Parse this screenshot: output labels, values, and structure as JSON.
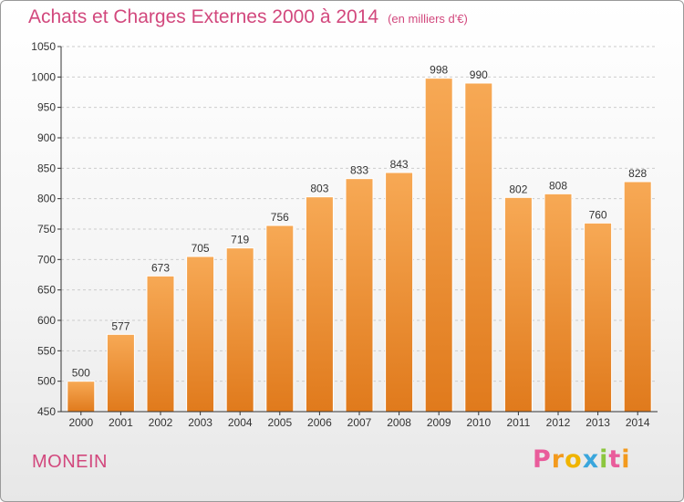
{
  "header": {
    "title": "Achats et Charges Externes 2000 à 2014",
    "unit": "(en milliers d'€)"
  },
  "footer": {
    "commune": "MONEIN",
    "logo_letters": [
      "P",
      "r",
      "o",
      "x",
      "i",
      "t",
      "i"
    ],
    "logo_colors": [
      "#e95c9b",
      "#f39a1e",
      "#f0b400",
      "#3aa6dc",
      "#8cc63e",
      "#e95c9b",
      "#f39a1e"
    ]
  },
  "colors": {
    "bar_top": "#f7a955",
    "bar_bottom": "#e07a1c",
    "accent": "#d2487d",
    "grid": "#cccccc"
  },
  "chart_data": {
    "type": "bar",
    "title": "Achats et Charges Externes 2000 à 2014",
    "subtitle": "(en milliers d'€)",
    "xlabel": "",
    "ylabel": "",
    "categories": [
      "2000",
      "2001",
      "2002",
      "2003",
      "2004",
      "2005",
      "2006",
      "2007",
      "2008",
      "2009",
      "2010",
      "2011",
      "2012",
      "2013",
      "2014"
    ],
    "values": [
      500,
      577,
      673,
      705,
      719,
      756,
      803,
      833,
      843,
      998,
      990,
      802,
      808,
      760,
      828
    ],
    "ylim": [
      450,
      1050
    ],
    "yticks": [
      450,
      500,
      550,
      600,
      650,
      700,
      750,
      800,
      850,
      900,
      950,
      1000,
      1050
    ],
    "grid": "dashed horizontal",
    "data_labels": true
  }
}
